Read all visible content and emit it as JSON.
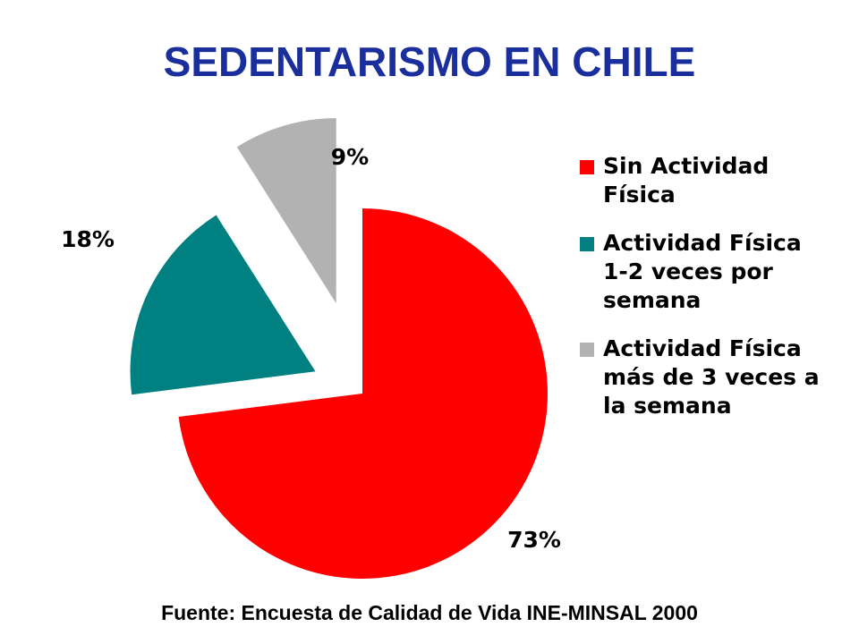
{
  "chart_data": {
    "type": "pie",
    "title": "SEDENTARISMO EN CHILE",
    "slices": [
      {
        "name": "Sin Actividad\nFísica",
        "value": 73,
        "label": "73%",
        "color": "#ff0000"
      },
      {
        "name": "Actividad Física\n1-2 veces por\nsemana",
        "value": 18,
        "label": "18%",
        "color": "#008080"
      },
      {
        "name": "Actividad Física\nmás de 3 veces a\nla semana",
        "value": 9,
        "label": "9%",
        "color": "#b2b2b2"
      }
    ],
    "legend": "right"
  },
  "source": "Fuente: Encuesta de Calidad de Vida INE-MINSAL 2000"
}
